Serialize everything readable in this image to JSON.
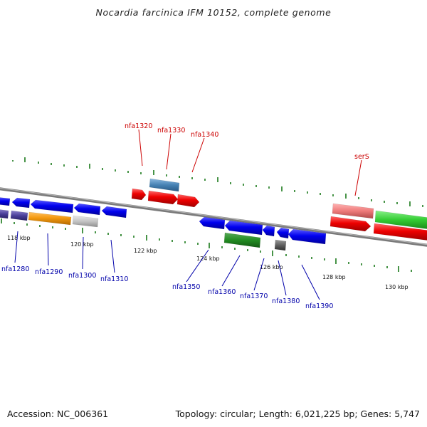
{
  "title": "Nocardia farcinica IFM 10152, complete genome",
  "footer": {
    "accession": "Accession: NC_006361",
    "summary": "Topology: circular; Length: 6,021,225 bp; Genes: 5,747"
  },
  "scale_labels": [
    "118 kbp",
    "120 kbp",
    "122 kbp",
    "124 kbp",
    "126 kbp",
    "128 kbp",
    "130 kbp"
  ],
  "gene_labels_top": [
    "nfa1320",
    "nfa1330",
    "nfa1340",
    "serS"
  ],
  "gene_labels_bottom": [
    "nfa1280",
    "nfa1290",
    "nfa1300",
    "nfa1310",
    "nfa1350",
    "nfa1360",
    "nfa1370",
    "nfa1380",
    "nfa1390"
  ],
  "colors": {
    "top_label": "#cc0000",
    "bottom_label": "#0000aa",
    "tick": "#1a7a1a",
    "backbone": "#808080"
  }
}
